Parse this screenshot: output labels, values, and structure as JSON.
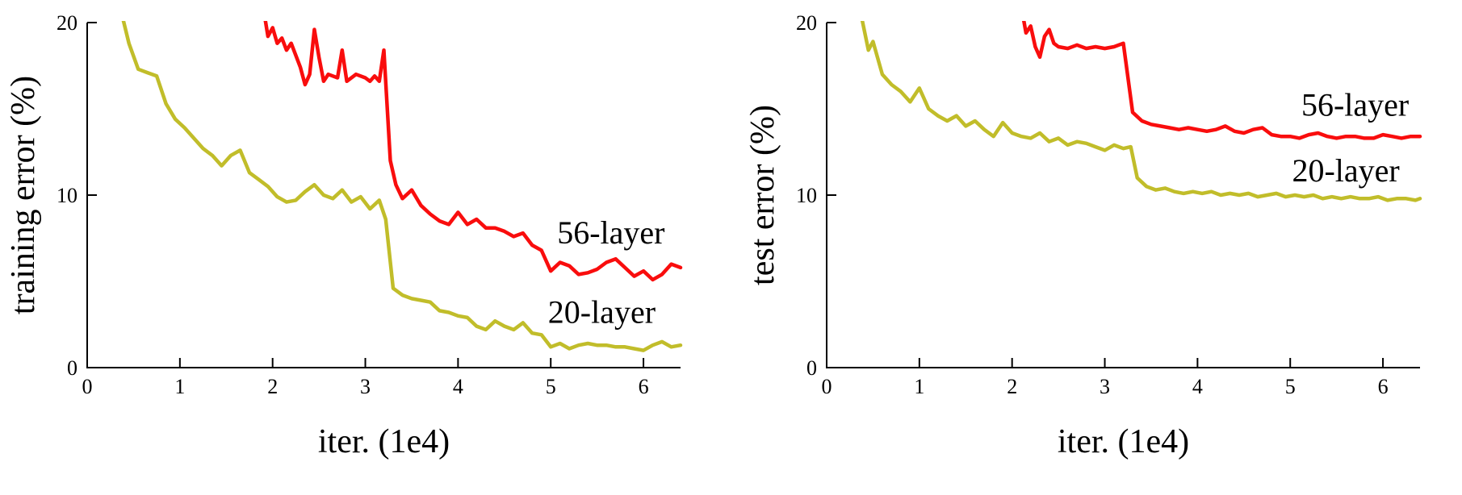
{
  "figure": {
    "name": "plain-network-error-curves",
    "background": "#ffffff",
    "text_color": "#000000",
    "axis_color": "#000000"
  },
  "colors": {
    "red_56_layer": "#f90d0d",
    "olive_20_layer": "#c1bd2a"
  },
  "chart_data": [
    {
      "type": "line",
      "title": "",
      "xlabel": "iter. (1e4)",
      "ylabel": "training error (%)",
      "xlim": [
        0,
        6.4
      ],
      "ylim": [
        0,
        20
      ],
      "xticks": [
        0,
        1,
        2,
        3,
        4,
        5,
        6
      ],
      "yticks": [
        0,
        10,
        20
      ],
      "grid": false,
      "legend_position": "none",
      "series": [
        {
          "name": "20-layer",
          "color_key": "olive_20_layer",
          "points": [
            [
              0.35,
              21.0
            ],
            [
              0.45,
              18.8
            ],
            [
              0.55,
              17.3
            ],
            [
              0.65,
              17.1
            ],
            [
              0.75,
              16.9
            ],
            [
              0.85,
              15.3
            ],
            [
              0.95,
              14.4
            ],
            [
              1.05,
              13.9
            ],
            [
              1.15,
              13.3
            ],
            [
              1.25,
              12.7
            ],
            [
              1.35,
              12.3
            ],
            [
              1.45,
              11.7
            ],
            [
              1.55,
              12.3
            ],
            [
              1.65,
              12.6
            ],
            [
              1.75,
              11.3
            ],
            [
              1.85,
              10.9
            ],
            [
              1.95,
              10.5
            ],
            [
              2.05,
              9.9
            ],
            [
              2.15,
              9.6
            ],
            [
              2.25,
              9.7
            ],
            [
              2.35,
              10.2
            ],
            [
              2.45,
              10.6
            ],
            [
              2.55,
              10.0
            ],
            [
              2.65,
              9.8
            ],
            [
              2.75,
              10.3
            ],
            [
              2.85,
              9.6
            ],
            [
              2.95,
              9.9
            ],
            [
              3.05,
              9.2
            ],
            [
              3.15,
              9.7
            ],
            [
              3.22,
              8.6
            ],
            [
              3.3,
              4.6
            ],
            [
              3.4,
              4.2
            ],
            [
              3.5,
              4.0
            ],
            [
              3.6,
              3.9
            ],
            [
              3.7,
              3.8
            ],
            [
              3.8,
              3.3
            ],
            [
              3.9,
              3.2
            ],
            [
              4.0,
              3.0
            ],
            [
              4.1,
              2.9
            ],
            [
              4.2,
              2.4
            ],
            [
              4.3,
              2.2
            ],
            [
              4.4,
              2.7
            ],
            [
              4.5,
              2.4
            ],
            [
              4.6,
              2.2
            ],
            [
              4.7,
              2.6
            ],
            [
              4.8,
              2.0
            ],
            [
              4.9,
              1.9
            ],
            [
              5.0,
              1.2
            ],
            [
              5.1,
              1.4
            ],
            [
              5.2,
              1.1
            ],
            [
              5.3,
              1.3
            ],
            [
              5.4,
              1.4
            ],
            [
              5.5,
              1.3
            ],
            [
              5.6,
              1.3
            ],
            [
              5.7,
              1.2
            ],
            [
              5.8,
              1.2
            ],
            [
              5.9,
              1.1
            ],
            [
              6.0,
              1.0
            ],
            [
              6.1,
              1.3
            ],
            [
              6.2,
              1.5
            ],
            [
              6.3,
              1.2
            ],
            [
              6.4,
              1.3
            ]
          ]
        },
        {
          "name": "56-layer",
          "color_key": "red_56_layer",
          "points": [
            [
              1.88,
              21.5
            ],
            [
              1.95,
              19.2
            ],
            [
              2.0,
              19.7
            ],
            [
              2.05,
              18.8
            ],
            [
              2.1,
              19.1
            ],
            [
              2.15,
              18.4
            ],
            [
              2.2,
              18.8
            ],
            [
              2.3,
              17.4
            ],
            [
              2.35,
              16.4
            ],
            [
              2.4,
              17.0
            ],
            [
              2.45,
              19.6
            ],
            [
              2.5,
              18.0
            ],
            [
              2.55,
              16.6
            ],
            [
              2.6,
              17.0
            ],
            [
              2.7,
              16.8
            ],
            [
              2.75,
              18.4
            ],
            [
              2.8,
              16.6
            ],
            [
              2.9,
              17.0
            ],
            [
              3.0,
              16.8
            ],
            [
              3.05,
              16.6
            ],
            [
              3.1,
              16.9
            ],
            [
              3.15,
              16.6
            ],
            [
              3.2,
              18.4
            ],
            [
              3.27,
              12.0
            ],
            [
              3.33,
              10.6
            ],
            [
              3.4,
              9.8
            ],
            [
              3.5,
              10.3
            ],
            [
              3.6,
              9.4
            ],
            [
              3.7,
              8.9
            ],
            [
              3.8,
              8.5
            ],
            [
              3.9,
              8.3
            ],
            [
              4.0,
              9.0
            ],
            [
              4.1,
              8.3
            ],
            [
              4.2,
              8.6
            ],
            [
              4.3,
              8.1
            ],
            [
              4.4,
              8.1
            ],
            [
              4.5,
              7.9
            ],
            [
              4.6,
              7.6
            ],
            [
              4.7,
              7.8
            ],
            [
              4.8,
              7.1
            ],
            [
              4.9,
              6.8
            ],
            [
              5.0,
              5.6
            ],
            [
              5.1,
              6.1
            ],
            [
              5.2,
              5.9
            ],
            [
              5.3,
              5.4
            ],
            [
              5.4,
              5.5
            ],
            [
              5.5,
              5.7
            ],
            [
              5.6,
              6.1
            ],
            [
              5.7,
              6.3
            ],
            [
              5.8,
              5.8
            ],
            [
              5.9,
              5.3
            ],
            [
              6.0,
              5.6
            ],
            [
              6.1,
              5.1
            ],
            [
              6.2,
              5.4
            ],
            [
              6.3,
              6.0
            ],
            [
              6.4,
              5.8
            ]
          ]
        }
      ],
      "annotations": [
        {
          "label": "56-layer",
          "x": 5.65,
          "y": 7.8
        },
        {
          "label": "20-layer",
          "x": 5.55,
          "y": 3.2
        }
      ]
    },
    {
      "type": "line",
      "title": "",
      "xlabel": "iter. (1e4)",
      "ylabel": "test error (%)",
      "xlim": [
        0,
        6.4
      ],
      "ylim": [
        0,
        20
      ],
      "xticks": [
        0,
        1,
        2,
        3,
        4,
        5,
        6
      ],
      "yticks": [
        0,
        10,
        20
      ],
      "grid": false,
      "legend_position": "none",
      "series": [
        {
          "name": "20-layer",
          "color_key": "olive_20_layer",
          "points": [
            [
              0.35,
              21.0
            ],
            [
              0.45,
              18.4
            ],
            [
              0.5,
              18.9
            ],
            [
              0.6,
              17.0
            ],
            [
              0.7,
              16.4
            ],
            [
              0.8,
              16.0
            ],
            [
              0.9,
              15.4
            ],
            [
              1.0,
              16.2
            ],
            [
              1.1,
              15.0
            ],
            [
              1.2,
              14.6
            ],
            [
              1.3,
              14.3
            ],
            [
              1.4,
              14.6
            ],
            [
              1.5,
              14.0
            ],
            [
              1.6,
              14.3
            ],
            [
              1.7,
              13.8
            ],
            [
              1.8,
              13.4
            ],
            [
              1.9,
              14.2
            ],
            [
              2.0,
              13.6
            ],
            [
              2.1,
              13.4
            ],
            [
              2.2,
              13.3
            ],
            [
              2.3,
              13.6
            ],
            [
              2.4,
              13.1
            ],
            [
              2.5,
              13.3
            ],
            [
              2.6,
              12.9
            ],
            [
              2.7,
              13.1
            ],
            [
              2.8,
              13.0
            ],
            [
              2.9,
              12.8
            ],
            [
              3.0,
              12.6
            ],
            [
              3.1,
              12.9
            ],
            [
              3.2,
              12.7
            ],
            [
              3.28,
              12.8
            ],
            [
              3.35,
              11.0
            ],
            [
              3.45,
              10.5
            ],
            [
              3.55,
              10.3
            ],
            [
              3.65,
              10.4
            ],
            [
              3.75,
              10.2
            ],
            [
              3.85,
              10.1
            ],
            [
              3.95,
              10.2
            ],
            [
              4.05,
              10.1
            ],
            [
              4.15,
              10.2
            ],
            [
              4.25,
              10.0
            ],
            [
              4.35,
              10.1
            ],
            [
              4.45,
              10.0
            ],
            [
              4.55,
              10.1
            ],
            [
              4.65,
              9.9
            ],
            [
              4.75,
              10.0
            ],
            [
              4.85,
              10.1
            ],
            [
              4.95,
              9.9
            ],
            [
              5.05,
              10.0
            ],
            [
              5.15,
              9.9
            ],
            [
              5.25,
              10.0
            ],
            [
              5.35,
              9.8
            ],
            [
              5.45,
              9.9
            ],
            [
              5.55,
              9.8
            ],
            [
              5.65,
              9.9
            ],
            [
              5.75,
              9.8
            ],
            [
              5.85,
              9.8
            ],
            [
              5.95,
              9.9
            ],
            [
              6.05,
              9.7
            ],
            [
              6.15,
              9.8
            ],
            [
              6.25,
              9.8
            ],
            [
              6.35,
              9.7
            ],
            [
              6.4,
              9.8
            ]
          ]
        },
        {
          "name": "56-layer",
          "color_key": "red_56_layer",
          "points": [
            [
              2.08,
              21.5
            ],
            [
              2.15,
              19.4
            ],
            [
              2.2,
              19.8
            ],
            [
              2.25,
              18.6
            ],
            [
              2.3,
              18.0
            ],
            [
              2.35,
              19.2
            ],
            [
              2.4,
              19.6
            ],
            [
              2.45,
              18.8
            ],
            [
              2.5,
              18.6
            ],
            [
              2.6,
              18.5
            ],
            [
              2.7,
              18.7
            ],
            [
              2.8,
              18.5
            ],
            [
              2.9,
              18.6
            ],
            [
              3.0,
              18.5
            ],
            [
              3.1,
              18.6
            ],
            [
              3.2,
              18.8
            ],
            [
              3.3,
              14.8
            ],
            [
              3.4,
              14.3
            ],
            [
              3.5,
              14.1
            ],
            [
              3.6,
              14.0
            ],
            [
              3.7,
              13.9
            ],
            [
              3.8,
              13.8
            ],
            [
              3.9,
              13.9
            ],
            [
              4.0,
              13.8
            ],
            [
              4.1,
              13.7
            ],
            [
              4.2,
              13.8
            ],
            [
              4.3,
              14.0
            ],
            [
              4.4,
              13.7
            ],
            [
              4.5,
              13.6
            ],
            [
              4.6,
              13.8
            ],
            [
              4.7,
              13.9
            ],
            [
              4.8,
              13.5
            ],
            [
              4.9,
              13.4
            ],
            [
              5.0,
              13.4
            ],
            [
              5.1,
              13.3
            ],
            [
              5.2,
              13.5
            ],
            [
              5.3,
              13.6
            ],
            [
              5.4,
              13.4
            ],
            [
              5.5,
              13.3
            ],
            [
              5.6,
              13.4
            ],
            [
              5.7,
              13.4
            ],
            [
              5.8,
              13.3
            ],
            [
              5.9,
              13.3
            ],
            [
              6.0,
              13.5
            ],
            [
              6.1,
              13.4
            ],
            [
              6.2,
              13.3
            ],
            [
              6.3,
              13.4
            ],
            [
              6.4,
              13.4
            ]
          ]
        }
      ],
      "annotations": [
        {
          "label": "56-layer",
          "x": 5.7,
          "y": 15.2
        },
        {
          "label": "20-layer",
          "x": 5.6,
          "y": 11.4
        }
      ]
    }
  ]
}
